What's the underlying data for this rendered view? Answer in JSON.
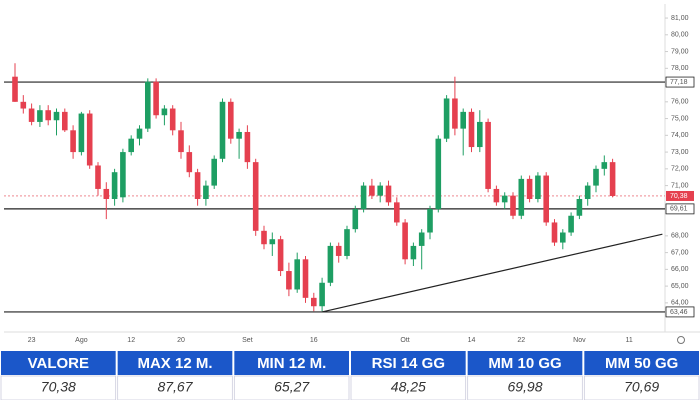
{
  "chart_data": {
    "type": "candlestick",
    "categories": [
      null,
      null,
      "23",
      null,
      null,
      null,
      null,
      null,
      "Ago",
      null,
      null,
      null,
      null,
      null,
      "12",
      null,
      null,
      null,
      null,
      null,
      "20",
      null,
      null,
      null,
      null,
      null,
      null,
      null,
      "Set",
      null,
      null,
      null,
      null,
      null,
      null,
      null,
      "16",
      null,
      null,
      null,
      null,
      null,
      null,
      null,
      null,
      null,
      null,
      "Ott",
      null,
      null,
      null,
      null,
      null,
      null,
      null,
      "14",
      null,
      null,
      null,
      null,
      null,
      "22",
      null,
      null,
      null,
      null,
      null,
      null,
      "Nov",
      null,
      null,
      null,
      null,
      null,
      "11"
    ],
    "open": [
      77.5,
      76.0,
      75.6,
      74.8,
      75.5,
      74.9,
      75.4,
      74.3,
      73.0,
      75.3,
      72.2,
      70.8,
      70.2,
      70.3,
      73.0,
      73.8,
      74.4,
      77.2,
      75.2,
      75.6,
      74.3,
      73.0,
      71.8,
      70.2,
      71.0,
      72.6,
      76.0,
      73.8,
      74.2,
      72.4,
      68.3,
      67.5,
      67.8,
      65.9,
      64.8,
      66.6,
      64.3,
      63.8,
      65.2,
      67.4,
      66.8,
      68.4,
      69.6,
      71.0,
      70.4,
      71.0,
      70.0,
      68.8,
      66.6,
      67.4,
      68.2,
      69.6,
      73.8,
      76.2,
      74.4,
      75.4,
      73.3,
      74.8,
      70.8,
      70.0,
      70.4,
      69.2,
      71.4,
      70.2,
      71.6,
      68.8,
      67.6,
      68.2,
      69.2,
      70.2,
      71.0,
      72.0,
      72.4,
      null,
      null
    ],
    "high": [
      78.3,
      76.4,
      75.9,
      75.8,
      75.8,
      75.6,
      75.6,
      74.6,
      75.4,
      75.5,
      72.4,
      71.2,
      72.0,
      73.2,
      74.0,
      74.6,
      77.4,
      77.4,
      75.8,
      75.8,
      74.8,
      73.4,
      72.0,
      71.3,
      72.8,
      76.2,
      76.2,
      74.4,
      74.6,
      72.6,
      68.6,
      68.2,
      68.0,
      66.4,
      67.0,
      66.8,
      64.6,
      65.5,
      67.6,
      67.6,
      68.6,
      69.8,
      71.2,
      71.4,
      71.2,
      71.3,
      70.3,
      69.0,
      67.6,
      68.4,
      69.8,
      74.0,
      76.4,
      77.5,
      75.6,
      75.6,
      75.5,
      75.0,
      71.0,
      70.6,
      70.6,
      71.6,
      71.6,
      71.8,
      71.8,
      69.0,
      68.4,
      69.4,
      70.4,
      71.2,
      72.2,
      72.8,
      72.6,
      null,
      null
    ],
    "low": [
      76.0,
      75.3,
      74.6,
      74.5,
      74.6,
      74.0,
      74.2,
      72.6,
      72.8,
      72.0,
      70.4,
      69.0,
      69.8,
      70.0,
      72.8,
      73.4,
      74.2,
      75.0,
      74.6,
      74.0,
      72.6,
      71.5,
      69.8,
      69.8,
      70.8,
      72.4,
      73.5,
      72.6,
      72.0,
      68.0,
      67.2,
      66.8,
      65.6,
      64.4,
      64.6,
      64.0,
      63.5,
      63.5,
      65.0,
      66.4,
      66.6,
      68.2,
      69.4,
      70.2,
      70.0,
      69.8,
      68.6,
      66.3,
      66.2,
      66.0,
      67.8,
      69.4,
      73.6,
      74.0,
      72.8,
      73.0,
      73.0,
      70.6,
      69.8,
      69.6,
      69.0,
      69.0,
      70.0,
      70.0,
      68.6,
      67.4,
      67.2,
      68.0,
      69.0,
      69.8,
      70.6,
      71.6,
      70.3,
      null,
      null
    ],
    "close": [
      76.0,
      75.6,
      74.8,
      75.5,
      74.9,
      75.4,
      74.3,
      73.0,
      75.3,
      72.2,
      70.8,
      70.2,
      71.8,
      73.0,
      73.8,
      74.4,
      77.2,
      75.2,
      75.6,
      74.3,
      73.0,
      71.8,
      70.2,
      71.0,
      72.6,
      76.0,
      73.8,
      74.2,
      72.4,
      68.3,
      67.5,
      67.8,
      65.9,
      64.8,
      66.6,
      64.3,
      63.8,
      65.2,
      67.4,
      66.8,
      68.4,
      69.6,
      71.0,
      70.4,
      71.0,
      70.0,
      68.8,
      66.6,
      67.4,
      68.2,
      69.6,
      73.8,
      76.2,
      74.4,
      75.4,
      73.3,
      74.8,
      70.8,
      70.0,
      70.4,
      69.2,
      71.4,
      70.2,
      71.6,
      68.8,
      67.6,
      68.2,
      69.2,
      70.2,
      71.0,
      72.0,
      72.4,
      70.38,
      null,
      null
    ],
    "up_color": "#1e9e63",
    "down_color": "#e5404f",
    "ylim": [
      62.5,
      81.6
    ],
    "yticks": [
      {
        "value": 64,
        "label": "64,00"
      },
      {
        "value": 65,
        "label": "65,00"
      },
      {
        "value": 66,
        "label": "66,00"
      },
      {
        "value": 67,
        "label": "67,00"
      },
      {
        "value": 68,
        "label": "68,00"
      },
      {
        "value": 71,
        "label": "71,00"
      },
      {
        "value": 72,
        "label": "72,00"
      },
      {
        "value": 73,
        "label": "73,00"
      },
      {
        "value": 74,
        "label": "74,00"
      },
      {
        "value": 75,
        "label": "75,00"
      },
      {
        "value": 76,
        "label": "76,00"
      },
      {
        "value": 78,
        "label": "78,00"
      },
      {
        "value": 79,
        "label": "79,00"
      },
      {
        "value": 80,
        "label": "80,00"
      },
      {
        "value": 81,
        "label": "81,00"
      }
    ],
    "levels": [
      {
        "value": 77.18,
        "label": "77,18"
      },
      {
        "value": 69.61,
        "label": "69,61"
      },
      {
        "value": 63.46,
        "label": "63,46"
      }
    ],
    "last_price": {
      "value": 70.38,
      "label": "70,38"
    },
    "trendline": {
      "x": [
        37,
        78
      ],
      "y": [
        63.46,
        68.1
      ]
    }
  },
  "table": {
    "headers": [
      "VALORE",
      "MAX 12 M.",
      "MIN 12 M.",
      "RSI 14 GG",
      "MM 10 GG",
      "MM 50 GG"
    ],
    "rows": [
      [
        "70,38",
        "87,67",
        "65,27",
        "48,25",
        "69,98",
        "70,69"
      ]
    ]
  }
}
